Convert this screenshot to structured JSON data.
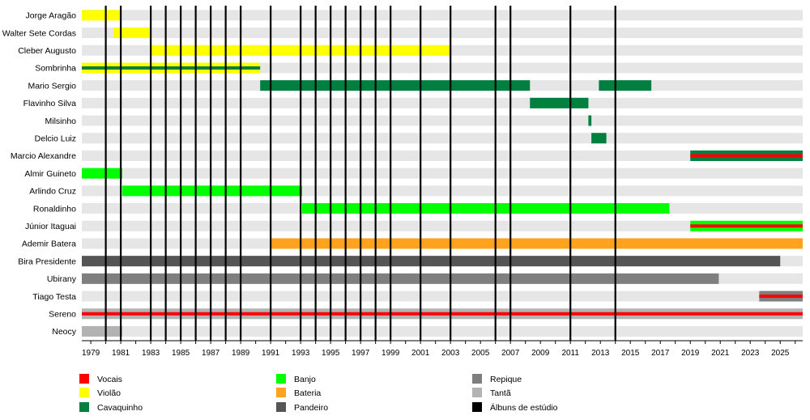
{
  "chart_data": {
    "type": "timeline",
    "xlim": [
      1978.4,
      2026.5
    ],
    "ticks": [
      1979,
      1981,
      1983,
      1985,
      1987,
      1989,
      1991,
      1993,
      1995,
      1997,
      1999,
      2001,
      2003,
      2005,
      2007,
      2009,
      2011,
      2013,
      2015,
      2017,
      2019,
      2021,
      2023,
      2025
    ],
    "albums": [
      1980,
      1981,
      1983,
      1984,
      1985,
      1986,
      1987,
      1988,
      1989,
      1991,
      1993,
      1994,
      1995,
      1996,
      1997,
      1998,
      1999,
      2001,
      2003,
      2006,
      2007,
      2011,
      2014
    ],
    "members": [
      {
        "name": "Jorge Aragão",
        "bars": [
          {
            "start": 1978.4,
            "end": 1981,
            "role": "violao"
          }
        ]
      },
      {
        "name": "Walter Sete Cordas",
        "bars": [
          {
            "start": 1980.5,
            "end": 1983,
            "role": "violao"
          }
        ]
      },
      {
        "name": "Cleber Augusto",
        "bars": [
          {
            "start": 1983,
            "end": 2003,
            "role": "violao"
          }
        ]
      },
      {
        "name": "Sombrinha",
        "bars": [
          {
            "start": 1978.4,
            "end": 1990.3,
            "role": "violao",
            "accent": "cavaquinho"
          }
        ]
      },
      {
        "name": "Mario Sergio",
        "bars": [
          {
            "start": 1990.3,
            "end": 2008.3,
            "role": "cavaquinho"
          },
          {
            "start": 2012.9,
            "end": 2016.4,
            "role": "cavaquinho"
          }
        ]
      },
      {
        "name": "Flavinho Silva",
        "bars": [
          {
            "start": 2008.3,
            "end": 2012.2,
            "role": "cavaquinho"
          }
        ]
      },
      {
        "name": "Milsinho",
        "bars": [
          {
            "start": 2012.2,
            "end": 2012.4,
            "role": "cavaquinho"
          }
        ]
      },
      {
        "name": "Delcio Luiz",
        "bars": [
          {
            "start": 2012.4,
            "end": 2013.4,
            "role": "cavaquinho"
          }
        ]
      },
      {
        "name": "Marcio Alexandre",
        "bars": [
          {
            "start": 2019,
            "end": 2026.5,
            "role": "cavaquinho",
            "accent": "vocais"
          }
        ]
      },
      {
        "name": "Almir Guineto",
        "bars": [
          {
            "start": 1978.4,
            "end": 1981.1,
            "role": "banjo"
          }
        ]
      },
      {
        "name": "Arlindo Cruz",
        "bars": [
          {
            "start": 1981.1,
            "end": 1993.1,
            "role": "banjo"
          }
        ]
      },
      {
        "name": "Ronaldinho",
        "bars": [
          {
            "start": 1993.1,
            "end": 2017.6,
            "role": "banjo"
          }
        ]
      },
      {
        "name": "Júnior Itaguai",
        "bars": [
          {
            "start": 2019,
            "end": 2026.5,
            "role": "banjo",
            "accent": "vocais"
          }
        ]
      },
      {
        "name": "Ademir Batera",
        "bars": [
          {
            "start": 1991,
            "end": 2026.5,
            "role": "bateria"
          }
        ]
      },
      {
        "name": "Bira Presidente",
        "bars": [
          {
            "start": 1978.4,
            "end": 2025,
            "role": "pandeiro"
          }
        ]
      },
      {
        "name": "Ubirany",
        "bars": [
          {
            "start": 1978.4,
            "end": 2020.9,
            "role": "repique"
          }
        ]
      },
      {
        "name": "Tiago Testa",
        "bars": [
          {
            "start": 2023.6,
            "end": 2026.5,
            "role": "repique",
            "accent": "vocais"
          }
        ]
      },
      {
        "name": "Sereno",
        "bars": [
          {
            "start": 1978.4,
            "end": 2026.5,
            "role": "tanta",
            "accent": "vocais"
          }
        ]
      },
      {
        "name": "Neocy",
        "bars": [
          {
            "start": 1978.4,
            "end": 1981.1,
            "role": "tanta"
          }
        ]
      }
    ],
    "legend": [
      {
        "key": "vocais",
        "label": "Vocais",
        "color": "#ff0000"
      },
      {
        "key": "violao",
        "label": "Violão",
        "color": "#ffff00"
      },
      {
        "key": "cavaquinho",
        "label": "Cavaquinho",
        "color": "#007f3f"
      },
      {
        "key": "banjo",
        "label": "Banjo",
        "color": "#00ff00"
      },
      {
        "key": "bateria",
        "label": "Bateria",
        "color": "#ffa31f"
      },
      {
        "key": "pandeiro",
        "label": "Pandeiro",
        "color": "#555555"
      },
      {
        "key": "repique",
        "label": "Repique",
        "color": "#7f7f7f"
      },
      {
        "key": "tanta",
        "label": "Tantã",
        "color": "#b3b3b3"
      },
      {
        "key": "albuns",
        "label": "Álbuns de estúdio",
        "color": "#000000"
      }
    ],
    "row_band_color": "#e6e6e6"
  }
}
